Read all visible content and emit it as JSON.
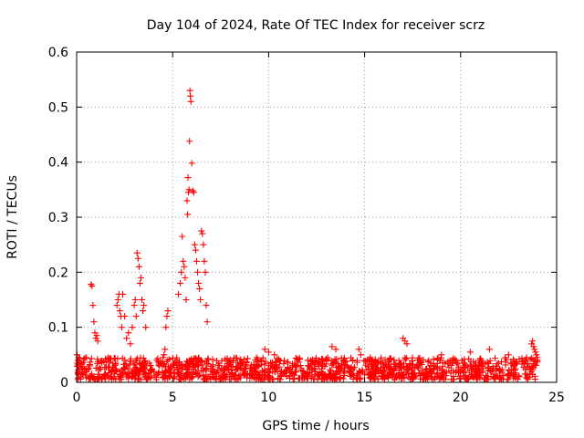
{
  "chart_data": {
    "type": "scatter",
    "title": "Day 104 of 2024, Rate Of TEC Index for receiver scrz",
    "xlabel": "GPS time / hours",
    "ylabel": "ROTI / TECUs",
    "xlim": [
      0,
      25
    ],
    "ylim": [
      0,
      0.6
    ],
    "xticks": [
      0,
      5,
      10,
      15,
      20,
      25
    ],
    "yticks": [
      0,
      0.1,
      0.2,
      0.3,
      0.4,
      0.5,
      0.6
    ],
    "xtick_labels": [
      "0",
      "5",
      "10",
      "15",
      "20",
      "25"
    ],
    "ytick_labels": [
      "0",
      "0.1",
      "0.2",
      "0.3",
      "0.4",
      "0.5",
      "0.6"
    ],
    "grid": true,
    "marker": "+",
    "color": "#ff0000",
    "series": [
      {
        "name": "ROTI",
        "baseline_hours": [
          0,
          24
        ],
        "baseline_range": [
          0.005,
          0.045
        ],
        "x": [
          0.02,
          0.05,
          0.1,
          0.75,
          0.8,
          0.85,
          0.9,
          0.95,
          1.0,
          1.05,
          1.1,
          2.1,
          2.15,
          2.2,
          2.25,
          2.3,
          2.35,
          2.4,
          2.5,
          2.6,
          2.7,
          2.8,
          2.9,
          3.0,
          3.05,
          3.1,
          3.15,
          3.2,
          3.25,
          3.3,
          3.35,
          3.4,
          3.45,
          3.5,
          3.6,
          4.5,
          4.55,
          4.6,
          4.65,
          4.7,
          4.75,
          5.3,
          5.4,
          5.45,
          5.5,
          5.55,
          5.6,
          5.65,
          5.7,
          5.75,
          5.78,
          5.8,
          5.82,
          5.85,
          5.88,
          5.9,
          5.92,
          5.95,
          6.0,
          6.05,
          6.1,
          6.15,
          6.2,
          6.25,
          6.3,
          6.35,
          6.4,
          6.45,
          6.5,
          6.55,
          6.6,
          6.65,
          6.7,
          6.75,
          6.8,
          9.8,
          10.0,
          10.3,
          13.3,
          13.5,
          14.7,
          14.8,
          17.0,
          17.1,
          17.2,
          19.0,
          20.5,
          21.5,
          22.5,
          23.7,
          23.75,
          23.8,
          23.85,
          23.9,
          23.95,
          24.0
        ],
        "y": [
          0.05,
          0.04,
          0.045,
          0.178,
          0.175,
          0.14,
          0.11,
          0.09,
          0.08,
          0.085,
          0.075,
          0.14,
          0.15,
          0.16,
          0.13,
          0.12,
          0.1,
          0.16,
          0.12,
          0.08,
          0.09,
          0.07,
          0.1,
          0.14,
          0.15,
          0.12,
          0.235,
          0.225,
          0.21,
          0.18,
          0.19,
          0.15,
          0.13,
          0.14,
          0.1,
          0.045,
          0.05,
          0.06,
          0.1,
          0.12,
          0.13,
          0.16,
          0.18,
          0.2,
          0.265,
          0.22,
          0.21,
          0.19,
          0.15,
          0.33,
          0.305,
          0.372,
          0.345,
          0.35,
          0.438,
          0.53,
          0.52,
          0.51,
          0.398,
          0.348,
          0.345,
          0.25,
          0.24,
          0.22,
          0.2,
          0.18,
          0.17,
          0.15,
          0.275,
          0.27,
          0.25,
          0.22,
          0.2,
          0.14,
          0.11,
          0.06,
          0.055,
          0.05,
          0.065,
          0.06,
          0.06,
          0.05,
          0.08,
          0.075,
          0.07,
          0.05,
          0.055,
          0.06,
          0.05,
          0.07,
          0.075,
          0.065,
          0.06,
          0.055,
          0.05,
          0.045
        ]
      }
    ]
  }
}
